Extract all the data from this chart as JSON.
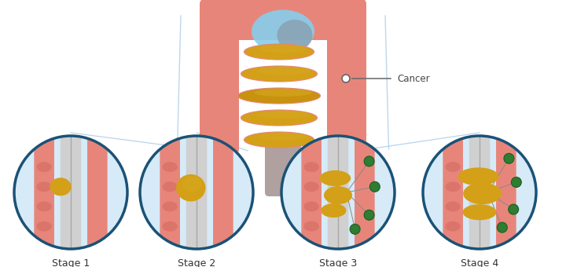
{
  "background_color": "#ffffff",
  "stage_labels": [
    "Stage 1",
    "Stage 2",
    "Stage 3",
    "Stage 4"
  ],
  "circle_border_color": "#1a5276",
  "circle_fill_color": "#d6eaf8",
  "colon_wall_color": "#e8857a",
  "colon_wall_dark": "#c0504d",
  "tumor_color": "#d4a017",
  "node_color": "#2e7d32",
  "node_border": "#1b5e20",
  "body_line_color": "#a8c8e8",
  "cancer_label": "Cancer",
  "cancer_label_color": "#444444",
  "lumen_color": "#c8c8c8",
  "sigmoid_color": "#b0a0a0",
  "sky_blue": "#87ceeb",
  "gray_blue": "#8899aa",
  "inner_fold_color": "#d4a820",
  "stage_label_color": "#333333",
  "stage_label_fontsize": 9,
  "marker_color": "#666666"
}
